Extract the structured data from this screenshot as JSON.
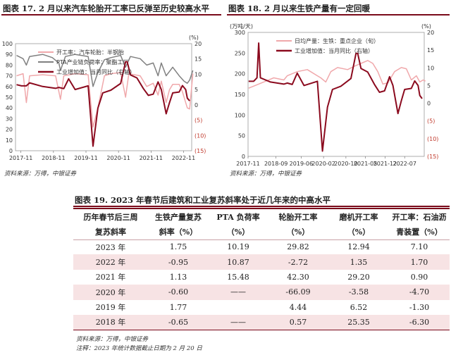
{
  "fig17": {
    "title": "图表 17. 2 月以来汽车轮胎开工率已反弹至历史较高水平",
    "source": "资料来源：万得，中银证券"
  },
  "fig18": {
    "title": "图表 18. 2 月以来生铁产量有一定回暖",
    "source": "资料来源：万得，中银证券"
  },
  "fig19": {
    "title": "图表 19. 2023 年春节后建筑和工业复苏斜率处于近几年来的中高水平",
    "source": "资料来源：万得，中银证券",
    "note": "注释：2023 年统计数据截止日期为 2 月 20 日"
  },
  "chart_data": [
    {
      "type": "line",
      "left_unit": "",
      "right_unit": "(%)",
      "ylim_left": [
        0,
        100
      ],
      "yticks_left": [
        "0",
        "10",
        "20",
        "30",
        "40",
        "50",
        "60",
        "70",
        "80",
        "90",
        "100"
      ],
      "ylim_right": [
        -15,
        20
      ],
      "yticks_right": [
        "(15)",
        "(10)",
        "(5)",
        "0",
        "5",
        "10",
        "15",
        "20"
      ],
      "xticks": [
        "2017-11",
        "2018-11",
        "2019-11",
        "2020-11",
        "2021-11",
        "2022-11"
      ],
      "x_start": "2017-09",
      "x_end": "2023-02",
      "series": [
        {
          "name": "开工率：汽车轮胎：半钢胎",
          "color": "#f0a8ab",
          "axis": "left",
          "points": [
            [
              2017.7,
              70
            ],
            [
              2017.9,
              72
            ],
            [
              2018.0,
              45
            ],
            [
              2018.1,
              70
            ],
            [
              2018.5,
              71
            ],
            [
              2018.9,
              70
            ],
            [
              2019.05,
              48
            ],
            [
              2019.15,
              70
            ],
            [
              2019.5,
              72
            ],
            [
              2019.9,
              71
            ],
            [
              2020.05,
              22
            ],
            [
              2020.2,
              40
            ],
            [
              2020.4,
              70
            ],
            [
              2020.6,
              72
            ],
            [
              2020.9,
              73
            ],
            [
              2021.05,
              50
            ],
            [
              2021.15,
              72
            ],
            [
              2021.5,
              70
            ],
            [
              2021.7,
              60
            ],
            [
              2021.9,
              63
            ],
            [
              2022.05,
              52
            ],
            [
              2022.15,
              65
            ],
            [
              2022.3,
              45
            ],
            [
              2022.4,
              57
            ],
            [
              2022.5,
              62
            ],
            [
              2022.7,
              62
            ],
            [
              2022.8,
              55
            ],
            [
              2022.95,
              40
            ],
            [
              2023.02,
              39
            ],
            [
              2023.12,
              72
            ]
          ]
        },
        {
          "name": "PTA产业链负荷率：聚酯工厂",
          "color": "#808080",
          "axis": "left",
          "points": [
            [
              2017.7,
              89
            ],
            [
              2017.9,
              86
            ],
            [
              2018.0,
              80
            ],
            [
              2018.1,
              88
            ],
            [
              2018.5,
              90
            ],
            [
              2018.8,
              87
            ],
            [
              2019.0,
              82
            ],
            [
              2019.05,
              75
            ],
            [
              2019.2,
              88
            ],
            [
              2019.5,
              90
            ],
            [
              2019.9,
              88
            ],
            [
              2020.05,
              60
            ],
            [
              2020.2,
              73
            ],
            [
              2020.4,
              85
            ],
            [
              2020.6,
              87
            ],
            [
              2020.9,
              89
            ],
            [
              2021.05,
              78
            ],
            [
              2021.2,
              88
            ],
            [
              2021.5,
              86
            ],
            [
              2021.7,
              80
            ],
            [
              2021.9,
              82
            ],
            [
              2022.05,
              70
            ],
            [
              2022.15,
              82
            ],
            [
              2022.3,
              70
            ],
            [
              2022.5,
              78
            ],
            [
              2022.7,
              70
            ],
            [
              2022.85,
              65
            ],
            [
              2022.95,
              63
            ],
            [
              2023.02,
              66
            ],
            [
              2023.12,
              75
            ]
          ]
        },
        {
          "name": "工业增加值：当月同比（右轴）",
          "color": "#8b0a1e",
          "axis": "right",
          "points": [
            [
              2017.7,
              6.6
            ],
            [
              2017.85,
              6.2
            ],
            [
              2018.0,
              6.2
            ],
            [
              2018.1,
              7.2
            ],
            [
              2018.5,
              6.0
            ],
            [
              2018.9,
              5.4
            ],
            [
              2019.0,
              5.7
            ],
            [
              2019.15,
              5.3
            ],
            [
              2019.3,
              8.5
            ],
            [
              2019.5,
              5.0
            ],
            [
              2019.9,
              6.2
            ],
            [
              2020.05,
              -13.5
            ],
            [
              2020.2,
              -1.1
            ],
            [
              2020.35,
              3.9
            ],
            [
              2020.6,
              4.8
            ],
            [
              2020.9,
              7.0
            ],
            [
              2021.05,
              14.1
            ],
            [
              2021.1,
              14.1
            ],
            [
              2021.2,
              9.8
            ],
            [
              2021.4,
              8.8
            ],
            [
              2021.6,
              5.3
            ],
            [
              2021.75,
              3.1
            ],
            [
              2021.9,
              3.5
            ],
            [
              2022.05,
              7.5
            ],
            [
              2022.15,
              5.0
            ],
            [
              2022.3,
              -2.9
            ],
            [
              2022.4,
              0.7
            ],
            [
              2022.5,
              3.9
            ],
            [
              2022.7,
              4.2
            ],
            [
              2022.8,
              6.3
            ],
            [
              2022.9,
              5.0
            ],
            [
              2022.95,
              2.2
            ],
            [
              2023.02,
              1.3
            ]
          ]
        }
      ]
    },
    {
      "type": "line",
      "left_unit": "(万吨/天)",
      "right_unit": "(%)",
      "ylim_left": [
        0,
        300
      ],
      "yticks_left": [
        "0",
        "50",
        "100",
        "150",
        "200",
        "250",
        "300"
      ],
      "ylim_right": [
        -15,
        20
      ],
      "yticks_right": [
        "(15)",
        "(10)",
        "(5)",
        "0",
        "5",
        "10",
        "15",
        "20"
      ],
      "xticks": [
        "2017-11",
        "2018-09",
        "2019-06",
        "2020-02",
        "2020-10",
        "2021-05",
        "2021-12",
        "2022-07"
      ],
      "x_start": "2017-11",
      "x_end": "2023-02",
      "series": [
        {
          "name": "日均产量：生铁：重点企业（旬）",
          "color": "#f0a8ab",
          "axis": "left",
          "points": [
            [
              2017.85,
              165
            ],
            [
              2018.0,
              170
            ],
            [
              2018.3,
              180
            ],
            [
              2018.6,
              190
            ],
            [
              2018.9,
              185
            ],
            [
              2019.0,
              195
            ],
            [
              2019.3,
              205
            ],
            [
              2019.6,
              210
            ],
            [
              2019.9,
              195
            ],
            [
              2020.0,
              190
            ],
            [
              2020.15,
              180
            ],
            [
              2020.3,
              205
            ],
            [
              2020.5,
              215
            ],
            [
              2020.8,
              210
            ],
            [
              2021.0,
              218
            ],
            [
              2021.2,
              225
            ],
            [
              2021.4,
              232
            ],
            [
              2021.55,
              225
            ],
            [
              2021.7,
              205
            ],
            [
              2021.85,
              175
            ],
            [
              2022.0,
              178
            ],
            [
              2022.2,
              205
            ],
            [
              2022.4,
              215
            ],
            [
              2022.55,
              212
            ],
            [
              2022.7,
              185
            ],
            [
              2022.85,
              195
            ],
            [
              2022.95,
              180
            ],
            [
              2023.05,
              185
            ],
            [
              2023.12,
              182
            ]
          ]
        },
        {
          "name": "工业增加值：当月同比（右轴）",
          "color": "#8b0a1e",
          "axis": "right",
          "points": [
            [
              2017.85,
              6.2
            ],
            [
              2018.0,
              6.2
            ],
            [
              2018.1,
              7.2
            ],
            [
              2018.15,
              17
            ],
            [
              2018.2,
              7.2
            ],
            [
              2018.5,
              6.0
            ],
            [
              2018.9,
              5.4
            ],
            [
              2019.0,
              5.7
            ],
            [
              2019.15,
              5.3
            ],
            [
              2019.3,
              8.5
            ],
            [
              2019.5,
              5.0
            ],
            [
              2019.9,
              6.2
            ],
            [
              2020.05,
              -13.5
            ],
            [
              2020.2,
              -1.1
            ],
            [
              2020.35,
              3.9
            ],
            [
              2020.6,
              4.8
            ],
            [
              2020.9,
              7.0
            ],
            [
              2021.05,
              14.1
            ],
            [
              2021.1,
              14.1
            ],
            [
              2021.2,
              9.8
            ],
            [
              2021.4,
              8.8
            ],
            [
              2021.6,
              5.3
            ],
            [
              2021.75,
              3.1
            ],
            [
              2021.9,
              3.5
            ],
            [
              2022.05,
              7.5
            ],
            [
              2022.15,
              5.0
            ],
            [
              2022.3,
              -2.9
            ],
            [
              2022.4,
              0.7
            ],
            [
              2022.5,
              3.9
            ],
            [
              2022.7,
              4.2
            ],
            [
              2022.8,
              6.3
            ],
            [
              2022.9,
              5.0
            ],
            [
              2022.95,
              2.2
            ],
            [
              2023.02,
              1.3
            ]
          ]
        }
      ]
    },
    {
      "type": "table",
      "headers": [
        [
          "历年春节后三周",
          "生铁产量复苏",
          "PTA 负荷率",
          "轮胎开工率",
          "磨机开工率",
          "开工率：石油沥"
        ],
        [
          "复苏斜率",
          "斜率（%）",
          "（%）",
          "（%）",
          "（%）",
          "青装置（%）"
        ]
      ],
      "rows": [
        [
          "2023 年",
          "1.75",
          "10.19",
          "29.82",
          "12.94",
          "7.10"
        ],
        [
          "2022 年",
          "-0.95",
          "10.87",
          "-2.72",
          "1.35",
          "1.70"
        ],
        [
          "2021 年",
          "1.13",
          "15.48",
          "42.30",
          "29.20",
          "0.90"
        ],
        [
          "2020 年",
          "-0.60",
          "——",
          "-66.09",
          "-3.58",
          "-4.70"
        ],
        [
          "2019 年",
          "1.77",
          "",
          "4.44",
          "6.52",
          "-1.30"
        ],
        [
          "2018 年",
          "-0.65",
          "——",
          "0.57",
          "25.35",
          "-6.30"
        ]
      ]
    }
  ]
}
